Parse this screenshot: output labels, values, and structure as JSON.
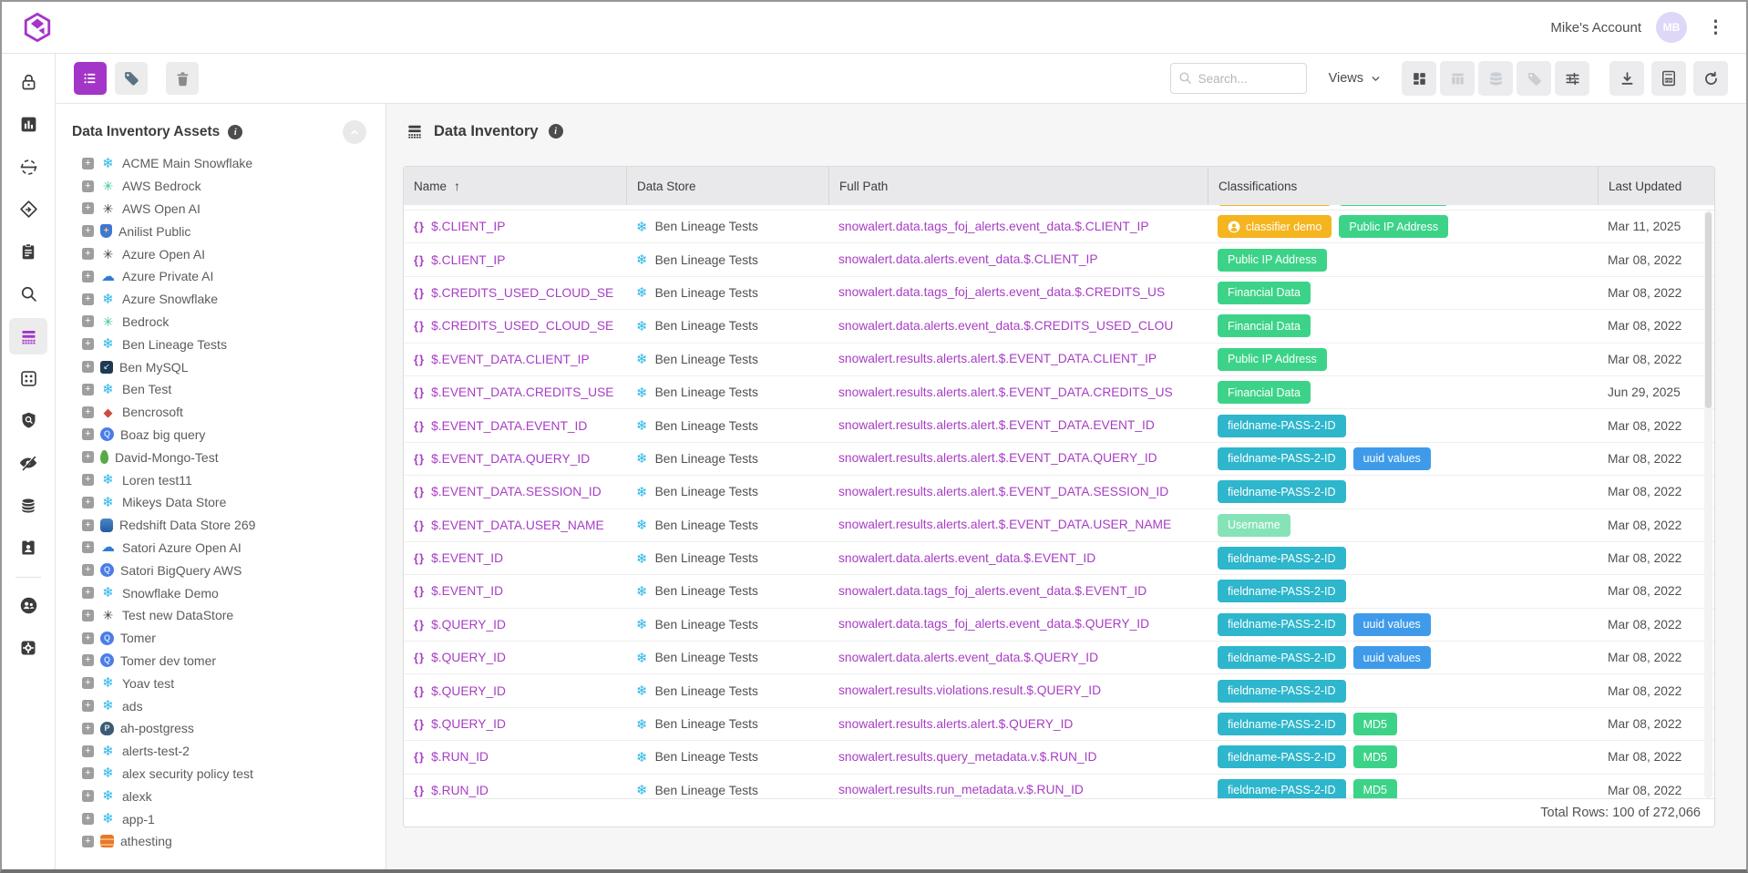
{
  "topbar": {
    "account_label": "Mike's Account",
    "avatar_initials": "MB",
    "icons": [
      "brand-logo-icon",
      "kebab-menu-icon"
    ]
  },
  "toolbar": {
    "left_buttons": [
      "list-view-button",
      "tag-button",
      "delete-button"
    ],
    "search_placeholder": "Search...",
    "views_label": "Views",
    "view_icons": [
      "dashboard-view-icon",
      "table-columns-icon",
      "database-view-icon",
      "tags-view-icon",
      "filter-sliders-icon"
    ],
    "action_icons": [
      "download-icon",
      "export-pdf-icon",
      "refresh-icon"
    ]
  },
  "rail": {
    "icons": [
      "lock-icon",
      "bar-chart-icon",
      "face-scan-icon",
      "directions-icon",
      "clipboard-icon",
      "search-icon",
      "data-inventory-icon",
      "apps-grid-icon",
      "shield-search-icon",
      "eye-off-icon",
      "database-icon",
      "id-badge-icon",
      "users-circle-icon",
      "settings-gear-icon"
    ],
    "active_icon": "data-inventory-icon"
  },
  "sidebar": {
    "title": "Data Inventory Assets",
    "items": [
      {
        "label": "ACME Main Snowflake",
        "type": "snowflake"
      },
      {
        "label": "AWS Bedrock",
        "type": "bedrock"
      },
      {
        "label": "AWS Open AI",
        "type": "openai"
      },
      {
        "label": "Anilist Public",
        "type": "shield"
      },
      {
        "label": "Azure Open AI",
        "type": "openai"
      },
      {
        "label": "Azure Private AI",
        "type": "azure"
      },
      {
        "label": "Azure Snowflake",
        "type": "snowflake"
      },
      {
        "label": "Bedrock",
        "type": "bedrock"
      },
      {
        "label": "Ben Lineage Tests",
        "type": "snowflake"
      },
      {
        "label": "Ben MySQL",
        "type": "mysql"
      },
      {
        "label": "Ben Test",
        "type": "snowflake"
      },
      {
        "label": "Bencrosoft",
        "type": "bencrosoft"
      },
      {
        "label": "Boaz big query",
        "type": "bigquery"
      },
      {
        "label": "David-Mongo-Test",
        "type": "mongodb"
      },
      {
        "label": "Loren test11",
        "type": "snowflake"
      },
      {
        "label": "Mikeys Data Store",
        "type": "snowflake"
      },
      {
        "label": "Redshift Data Store 269",
        "type": "redshift"
      },
      {
        "label": "Satori Azure Open AI",
        "type": "azure"
      },
      {
        "label": "Satori BigQuery AWS",
        "type": "bigquery"
      },
      {
        "label": "Snowflake Demo",
        "type": "snowflake"
      },
      {
        "label": "Test new DataStore",
        "type": "openai"
      },
      {
        "label": "Tomer",
        "type": "bigquery"
      },
      {
        "label": "Tomer dev tomer",
        "type": "bigquery"
      },
      {
        "label": "Yoav test",
        "type": "snowflake"
      },
      {
        "label": "ads",
        "type": "snowflake"
      },
      {
        "label": "ah-postgress",
        "type": "postgres"
      },
      {
        "label": "alerts-test-2",
        "type": "snowflake"
      },
      {
        "label": "alex security policy test",
        "type": "snowflake"
      },
      {
        "label": "alexk",
        "type": "snowflake"
      },
      {
        "label": "app-1",
        "type": "snowflake"
      },
      {
        "label": "athesting",
        "type": "athena"
      }
    ]
  },
  "main": {
    "title": "Data Inventory",
    "table": {
      "columns": [
        "Name",
        "Data Store",
        "Full Path",
        "Classifications",
        "Last Updated"
      ],
      "sort_column": "Name",
      "sort_direction": "ascending",
      "partial_row_visible": true,
      "rows": [
        {
          "name": "$.CLIENT_IP",
          "data_store": "Ben Lineage Tests",
          "full_path": "snowalert.data.tags_foj_alerts.event_data.$.CLIENT_IP",
          "chips": [
            {
              "label": "classifier demo",
              "color": "orange",
              "icon": "person"
            },
            {
              "label": "Public IP Address",
              "color": "green"
            }
          ],
          "last_updated": "Mar 11, 2025"
        },
        {
          "name": "$.CLIENT_IP",
          "data_store": "Ben Lineage Tests",
          "full_path": "snowalert.data.alerts.event_data.$.CLIENT_IP",
          "chips": [
            {
              "label": "Public IP Address",
              "color": "green"
            }
          ],
          "last_updated": "Mar 08, 2022"
        },
        {
          "name": "$.CREDITS_USED_CLOUD_SE",
          "data_store": "Ben Lineage Tests",
          "full_path": "snowalert.data.tags_foj_alerts.event_data.$.CREDITS_US",
          "chips": [
            {
              "label": "Financial Data",
              "color": "green"
            }
          ],
          "last_updated": "Mar 08, 2022"
        },
        {
          "name": "$.CREDITS_USED_CLOUD_SE",
          "data_store": "Ben Lineage Tests",
          "full_path": "snowalert.data.alerts.event_data.$.CREDITS_USED_CLOU",
          "chips": [
            {
              "label": "Financial Data",
              "color": "green"
            }
          ],
          "last_updated": "Mar 08, 2022"
        },
        {
          "name": "$.EVENT_DATA.CLIENT_IP",
          "data_store": "Ben Lineage Tests",
          "full_path": "snowalert.results.alerts.alert.$.EVENT_DATA.CLIENT_IP",
          "chips": [
            {
              "label": "Public IP Address",
              "color": "green"
            }
          ],
          "last_updated": "Mar 08, 2022"
        },
        {
          "name": "$.EVENT_DATA.CREDITS_USE",
          "data_store": "Ben Lineage Tests",
          "full_path": "snowalert.results.alerts.alert.$.EVENT_DATA.CREDITS_US",
          "chips": [
            {
              "label": "Financial Data",
              "color": "green"
            }
          ],
          "last_updated": "Jun 29, 2025"
        },
        {
          "name": "$.EVENT_DATA.EVENT_ID",
          "data_store": "Ben Lineage Tests",
          "full_path": "snowalert.results.alerts.alert.$.EVENT_DATA.EVENT_ID",
          "chips": [
            {
              "label": "fieldname-PASS-2-ID",
              "color": "teal"
            }
          ],
          "last_updated": "Mar 08, 2022"
        },
        {
          "name": "$.EVENT_DATA.QUERY_ID",
          "data_store": "Ben Lineage Tests",
          "full_path": "snowalert.results.alerts.alert.$.EVENT_DATA.QUERY_ID",
          "chips": [
            {
              "label": "fieldname-PASS-2-ID",
              "color": "teal"
            },
            {
              "label": "uuid values",
              "color": "blue"
            }
          ],
          "last_updated": "Mar 08, 2022"
        },
        {
          "name": "$.EVENT_DATA.SESSION_ID",
          "data_store": "Ben Lineage Tests",
          "full_path": "snowalert.results.alerts.alert.$.EVENT_DATA.SESSION_ID",
          "chips": [
            {
              "label": "fieldname-PASS-2-ID",
              "color": "teal"
            }
          ],
          "last_updated": "Mar 08, 2022"
        },
        {
          "name": "$.EVENT_DATA.USER_NAME",
          "data_store": "Ben Lineage Tests",
          "full_path": "snowalert.results.alerts.alert.$.EVENT_DATA.USER_NAME",
          "chips": [
            {
              "label": "Username",
              "color": "pale"
            }
          ],
          "last_updated": "Mar 08, 2022"
        },
        {
          "name": "$.EVENT_ID",
          "data_store": "Ben Lineage Tests",
          "full_path": "snowalert.data.alerts.event_data.$.EVENT_ID",
          "chips": [
            {
              "label": "fieldname-PASS-2-ID",
              "color": "teal"
            }
          ],
          "last_updated": "Mar 08, 2022"
        },
        {
          "name": "$.EVENT_ID",
          "data_store": "Ben Lineage Tests",
          "full_path": "snowalert.data.tags_foj_alerts.event_data.$.EVENT_ID",
          "chips": [
            {
              "label": "fieldname-PASS-2-ID",
              "color": "teal"
            }
          ],
          "last_updated": "Mar 08, 2022"
        },
        {
          "name": "$.QUERY_ID",
          "data_store": "Ben Lineage Tests",
          "full_path": "snowalert.data.tags_foj_alerts.event_data.$.QUERY_ID",
          "chips": [
            {
              "label": "fieldname-PASS-2-ID",
              "color": "teal"
            },
            {
              "label": "uuid values",
              "color": "blue"
            }
          ],
          "last_updated": "Mar 08, 2022"
        },
        {
          "name": "$.QUERY_ID",
          "data_store": "Ben Lineage Tests",
          "full_path": "snowalert.data.alerts.event_data.$.QUERY_ID",
          "chips": [
            {
              "label": "fieldname-PASS-2-ID",
              "color": "teal"
            },
            {
              "label": "uuid values",
              "color": "blue"
            }
          ],
          "last_updated": "Mar 08, 2022"
        },
        {
          "name": "$.QUERY_ID",
          "data_store": "Ben Lineage Tests",
          "full_path": "snowalert.results.violations.result.$.QUERY_ID",
          "chips": [
            {
              "label": "fieldname-PASS-2-ID",
              "color": "teal"
            }
          ],
          "last_updated": "Mar 08, 2022"
        },
        {
          "name": "$.QUERY_ID",
          "data_store": "Ben Lineage Tests",
          "full_path": "snowalert.results.alerts.alert.$.QUERY_ID",
          "chips": [
            {
              "label": "fieldname-PASS-2-ID",
              "color": "teal"
            },
            {
              "label": "MD5",
              "color": "green"
            }
          ],
          "last_updated": "Mar 08, 2022"
        },
        {
          "name": "$.RUN_ID",
          "data_store": "Ben Lineage Tests",
          "full_path": "snowalert.results.query_metadata.v.$.RUN_ID",
          "chips": [
            {
              "label": "fieldname-PASS-2-ID",
              "color": "teal"
            },
            {
              "label": "MD5",
              "color": "green"
            }
          ],
          "last_updated": "Mar 08, 2022"
        },
        {
          "name": "$.RUN_ID",
          "data_store": "Ben Lineage Tests",
          "full_path": "snowalert.results.run_metadata.v.$.RUN_ID",
          "chips": [
            {
              "label": "fieldname-PASS-2-ID",
              "color": "teal"
            },
            {
              "label": "MD5",
              "color": "green"
            }
          ],
          "last_updated": "Mar 08, 2022"
        }
      ],
      "footer": "Total Rows: 100 of 272,066"
    }
  },
  "colors": {
    "accent_purple": "#a435c9",
    "link_purple": "#a83dc4",
    "snowflake_cyan": "#29b5e8",
    "chip_green": "#3cd389",
    "chip_teal": "#2eb6cc",
    "chip_blue": "#3f9bea",
    "chip_pale_green": "#85e3b7",
    "chip_orange": "#f5b51f"
  }
}
